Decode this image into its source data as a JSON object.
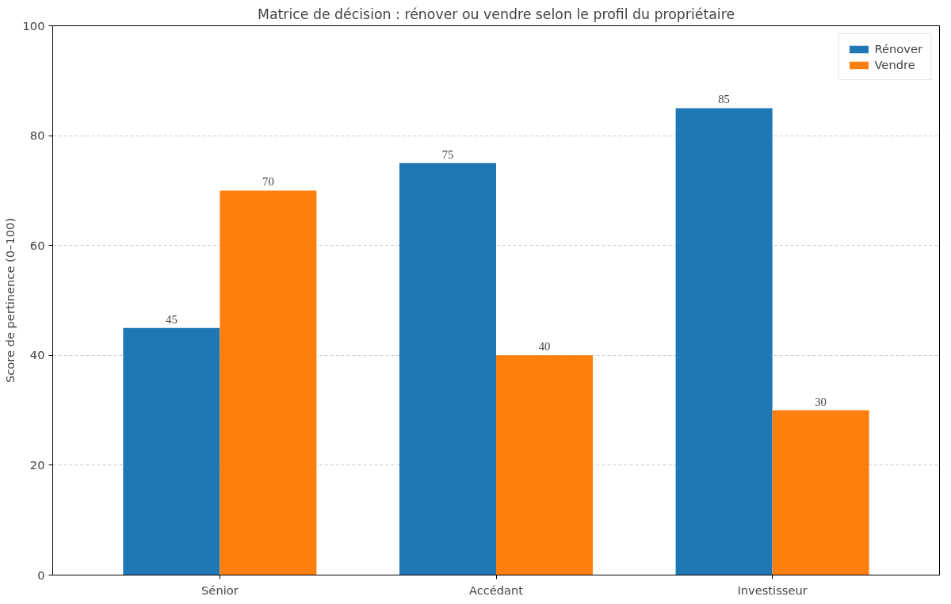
{
  "chart_data": {
    "type": "bar",
    "title": "Matrice de décision : rénover ou vendre selon le profil du propriétaire",
    "ylabel": "Score de pertinence (0–100)",
    "categories": [
      "Sénior",
      "Accédant",
      "Investisseur"
    ],
    "series": [
      {
        "name": "Rénover",
        "color": "#1f77b4",
        "values": [
          45,
          75,
          85
        ]
      },
      {
        "name": "Vendre",
        "color": "#ff7f0e",
        "values": [
          70,
          40,
          30
        ]
      }
    ],
    "ylim": [
      0,
      100
    ],
    "yticks": [
      0,
      20,
      40,
      60,
      80,
      100
    ],
    "grid": "y",
    "line_style": "dashed",
    "legend": "top right",
    "data_labels": true
  }
}
